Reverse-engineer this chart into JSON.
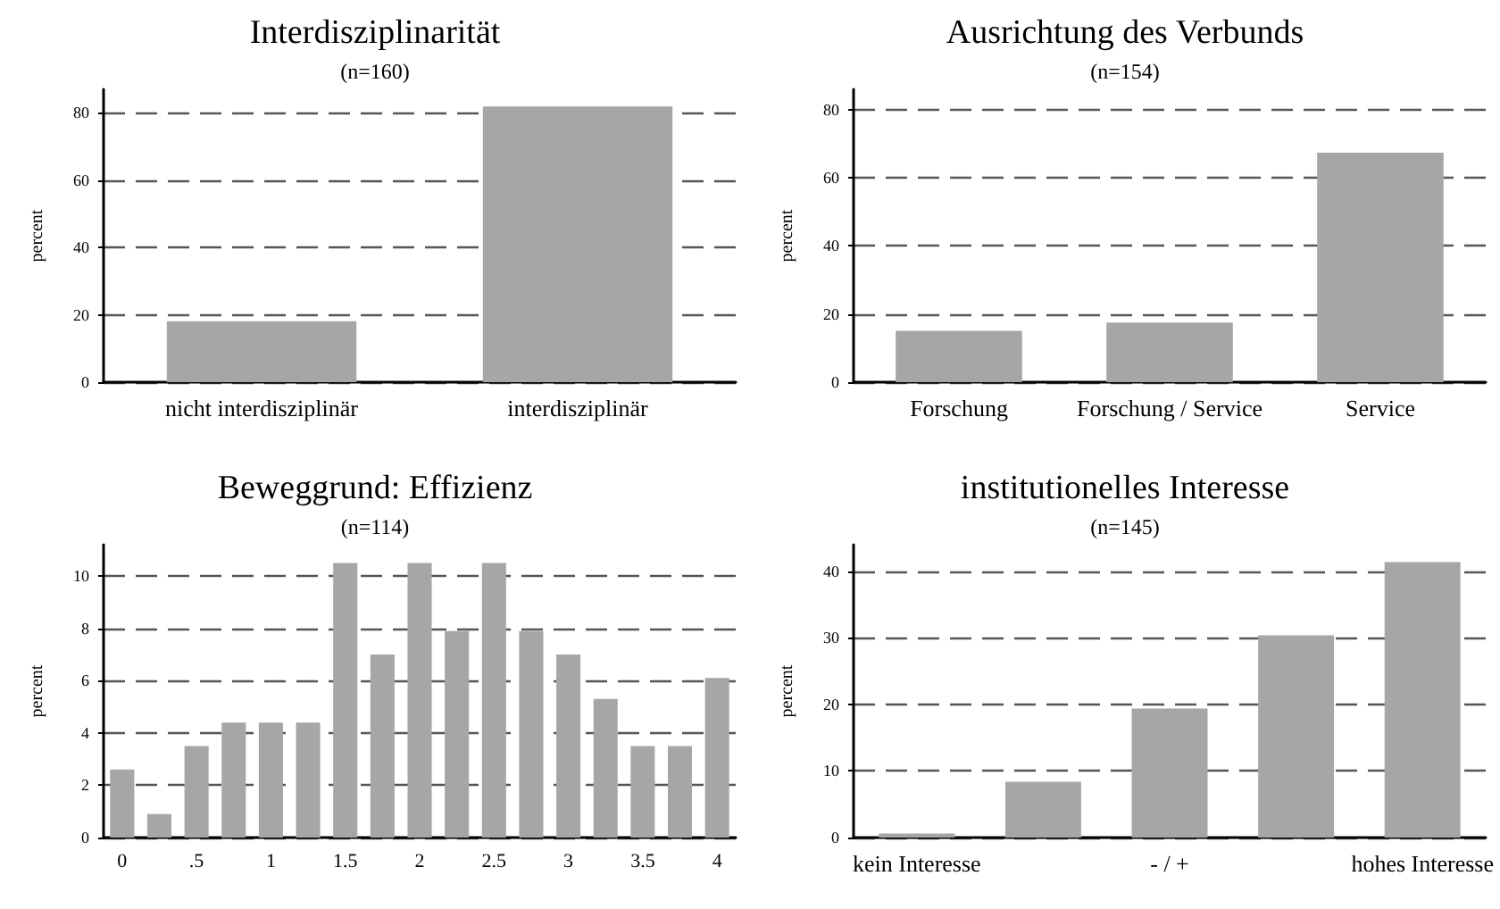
{
  "chart_data": [
    {
      "type": "bar",
      "title": "Interdisziplinarität",
      "subtitle": "(n=160)",
      "ylabel": "percent",
      "categories": [
        "nicht interdisziplinär",
        "interdisziplinär"
      ],
      "values": [
        18.1,
        81.9
      ],
      "color": "#a6a6a6",
      "ylim": [
        0,
        87
      ],
      "yticks": [
        0,
        20,
        40,
        60,
        80
      ],
      "grid": "y"
    },
    {
      "type": "bar",
      "title": "Ausrichtung des Verbunds",
      "subtitle": "(n=154)",
      "ylabel": "percent",
      "categories": [
        "Forschung",
        "Forschung / Service",
        "Service"
      ],
      "values": [
        15.1,
        17.5,
        67.4
      ],
      "color": "#a6a6a6",
      "ylim": [
        0,
        86
      ],
      "yticks": [
        0,
        20,
        40,
        60,
        80
      ],
      "grid": "y"
    },
    {
      "type": "bar",
      "title": "Beweggrund: Effizienz",
      "subtitle": "(n=114)",
      "ylabel": "percent",
      "categories": [
        "0",
        null,
        ".5",
        null,
        "1",
        null,
        "1.5",
        null,
        "2",
        null,
        "2.5",
        null,
        "3",
        null,
        "3.5",
        null,
        "4"
      ],
      "values": [
        2.6,
        0.9,
        3.5,
        4.4,
        4.4,
        4.4,
        10.5,
        7.0,
        10.5,
        7.9,
        10.5,
        7.9,
        7.0,
        5.3,
        3.5,
        3.5,
        6.1
      ],
      "color": "#a6a6a6",
      "ylim": [
        0,
        11.2
      ],
      "yticks": [
        0,
        2,
        4,
        6,
        8,
        10
      ],
      "grid": "y"
    },
    {
      "type": "bar",
      "title": "institutionelles Interesse",
      "subtitle": "(n=145)",
      "ylabel": "percent",
      "categories": [
        "kein Interesse",
        null,
        "- / +",
        null,
        "hohes Interesse"
      ],
      "values": [
        0.6,
        8.4,
        19.4,
        30.4,
        41.4
      ],
      "color": "#a6a6a6",
      "ylim": [
        0,
        44
      ],
      "yticks": [
        0,
        10,
        20,
        30,
        40
      ],
      "grid": "y"
    }
  ]
}
